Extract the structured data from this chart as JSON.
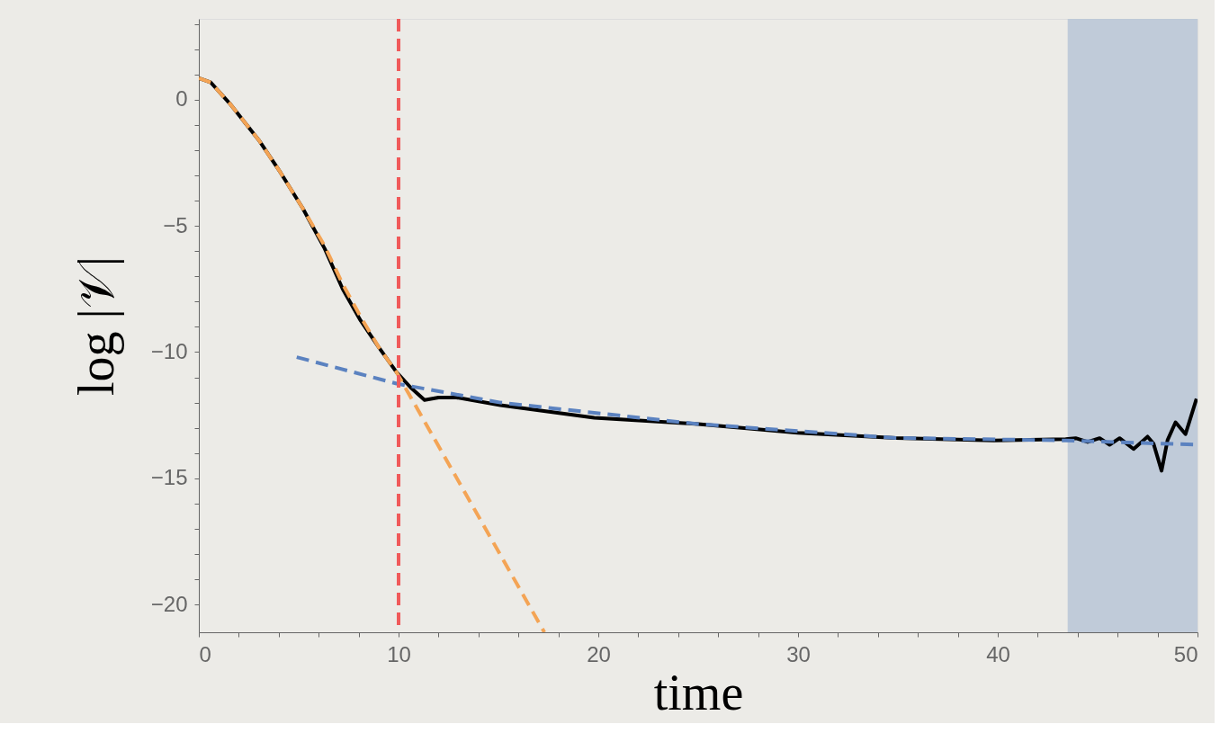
{
  "chart_data": {
    "type": "line",
    "xlabel": "time",
    "ylabel": "log |𝒱|",
    "xlim": [
      0,
      50
    ],
    "ylim": [
      -21.1,
      3.2
    ],
    "xticks": [
      0,
      {
        "value": 2,
        "label": null
      },
      {
        "value": 4,
        "label": null
      },
      {
        "value": 6,
        "label": null
      },
      {
        "value": 8,
        "label": null
      },
      10,
      {
        "value": 12,
        "label": null
      },
      {
        "value": 14,
        "label": null
      },
      {
        "value": 16,
        "label": null
      },
      {
        "value": 18,
        "label": null
      },
      20,
      {
        "value": 22,
        "label": null
      },
      {
        "value": 24,
        "label": null
      },
      {
        "value": 26,
        "label": null
      },
      {
        "value": 28,
        "label": null
      },
      30,
      {
        "value": 32,
        "label": null
      },
      {
        "value": 34,
        "label": null
      },
      {
        "value": 36,
        "label": null
      },
      {
        "value": 38,
        "label": null
      },
      40,
      {
        "value": 42,
        "label": null
      },
      {
        "value": 44,
        "label": null
      },
      {
        "value": 46,
        "label": null
      },
      {
        "value": 48,
        "label": null
      },
      50
    ],
    "yticks": [
      {
        "value": -20,
        "label": "−20"
      },
      {
        "value": -19,
        "label": null
      },
      {
        "value": -18,
        "label": null
      },
      {
        "value": -17,
        "label": null
      },
      {
        "value": -16,
        "label": null
      },
      {
        "value": -15,
        "label": "−15"
      },
      {
        "value": -14,
        "label": null
      },
      {
        "value": -13,
        "label": null
      },
      {
        "value": -12,
        "label": null
      },
      {
        "value": -11,
        "label": null
      },
      {
        "value": -10,
        "label": "−10"
      },
      {
        "value": -9,
        "label": null
      },
      {
        "value": -8,
        "label": null
      },
      {
        "value": -7,
        "label": null
      },
      {
        "value": -6,
        "label": null
      },
      {
        "value": -5,
        "label": "−5"
      },
      {
        "value": -4,
        "label": null
      },
      {
        "value": -3,
        "label": null
      },
      {
        "value": -2,
        "label": null
      },
      {
        "value": -1,
        "label": null
      },
      0,
      {
        "value": 1,
        "label": null
      },
      {
        "value": 2,
        "label": null
      },
      {
        "value": 3,
        "label": null
      }
    ],
    "grid": false,
    "series": [
      {
        "color": "#000000",
        "line_style": "solid",
        "x": [
          0,
          0.6,
          1.6,
          3,
          4.1,
          5.2,
          6.3,
          7.2,
          8.1,
          9.0,
          9.9,
          10.6,
          11.3,
          12.0,
          12.9,
          15.1,
          19.8,
          25,
          30,
          34.9,
          39.8,
          43.4,
          43.9,
          44.5,
          45.1,
          45.6,
          46.1,
          46.8,
          47.5,
          47.8,
          48.2,
          48.5,
          48.9,
          49.4,
          49.95
        ],
        "values": [
          0.85,
          0.68,
          -0.2,
          -1.6,
          -2.9,
          -4.3,
          -5.9,
          -7.5,
          -8.75,
          -9.8,
          -10.8,
          -11.4,
          -11.9,
          -11.8,
          -11.8,
          -12.1,
          -12.6,
          -12.85,
          -13.2,
          -13.4,
          -13.5,
          -13.45,
          -13.41,
          -13.56,
          -13.41,
          -13.67,
          -13.41,
          -13.84,
          -13.35,
          -13.63,
          -14.7,
          -13.49,
          -12.78,
          -13.25,
          -11.85
        ]
      },
      {
        "color": "#f4a455",
        "line_style": "dashed",
        "x": [
          0,
          0.6,
          1.6,
          3,
          4.1,
          5.2,
          6.3,
          7.2,
          8.1,
          9.0,
          9.9,
          17.3
        ],
        "values": [
          0.85,
          0.68,
          -0.2,
          -1.6,
          -2.9,
          -4.3,
          -5.8,
          -7.3,
          -8.6,
          -9.8,
          -10.8,
          -21.1
        ]
      },
      {
        "color": "#5b82c0",
        "line_style": "dashed",
        "x": [
          4.9,
          9.9,
          15.1,
          25,
          34.9,
          43.4,
          50
        ],
        "values": [
          -10.2,
          -11.25,
          -12.0,
          -12.85,
          -13.4,
          -13.5,
          -13.67
        ]
      }
    ],
    "ref_lines": [
      {
        "axis": "x",
        "value": 10,
        "color": "#f05a5a",
        "line_style": "dashed"
      }
    ],
    "bands": [
      {
        "axis": "x",
        "from": 43.5,
        "to": 50,
        "color": "#b9c5d6"
      }
    ]
  }
}
